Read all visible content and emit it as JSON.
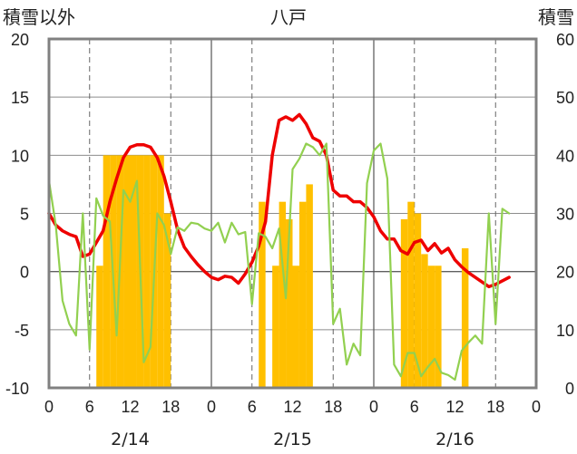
{
  "chart_data": {
    "type": "bar",
    "title": "八戸",
    "left_axis_label": "積雪以外",
    "right_axis_label": "積雪",
    "ylim_left": [
      -10,
      20
    ],
    "yticks_left": [
      "20",
      "15",
      "10",
      "5",
      "0",
      "-5",
      "-10"
    ],
    "ylim_right": [
      0,
      60
    ],
    "yticks_right": [
      "60",
      "50",
      "40",
      "30",
      "20",
      "10",
      "0"
    ],
    "xlim_hours": [
      0,
      72
    ],
    "xtick_labels": [
      "0",
      "6",
      "12",
      "18",
      "0",
      "6",
      "12",
      "18",
      "0",
      "6",
      "12",
      "18",
      "0"
    ],
    "date_labels": [
      "2/14",
      "2/15",
      "2/16"
    ],
    "grid": "dashed vertical lines at 6 and 18 h; solid vertical lines at day boundaries; horizontal lines every 5 units",
    "colors": {
      "snow_depth": "#ffc000",
      "temperature": "#ee0000",
      "green_series": "#92d050",
      "purple_series": "#7030a0",
      "frame": "#808080"
    },
    "series": [
      {
        "kind": "bar",
        "axis": "right",
        "color": "#ffc000",
        "points": [
          [
            7,
            21
          ],
          [
            8,
            40
          ],
          [
            9,
            40
          ],
          [
            10,
            40
          ],
          [
            11,
            40
          ],
          [
            12,
            40
          ],
          [
            13,
            40
          ],
          [
            14,
            40
          ],
          [
            15,
            40
          ],
          [
            16,
            40
          ],
          [
            17,
            30
          ],
          [
            31,
            32
          ],
          [
            33,
            21
          ],
          [
            34,
            32
          ],
          [
            35,
            29
          ],
          [
            36,
            21
          ],
          [
            37,
            32
          ],
          [
            38,
            35
          ],
          [
            52,
            29
          ],
          [
            53,
            32
          ],
          [
            54,
            30
          ],
          [
            55,
            23
          ],
          [
            56,
            21
          ],
          [
            57,
            21
          ],
          [
            61,
            24
          ]
        ]
      },
      {
        "kind": "line",
        "axis": "left",
        "color": "#ee0000",
        "points": [
          [
            0,
            5
          ],
          [
            1,
            4
          ],
          [
            2,
            3.5
          ],
          [
            3,
            3.2
          ],
          [
            4,
            3
          ],
          [
            5,
            1.3
          ],
          [
            6,
            1.5
          ],
          [
            7,
            2.5
          ],
          [
            8,
            3.5
          ],
          [
            9,
            6
          ],
          [
            10,
            8
          ],
          [
            11,
            9.8
          ],
          [
            12,
            10.7
          ],
          [
            13,
            10.9
          ],
          [
            14,
            10.9
          ],
          [
            15,
            10.7
          ],
          [
            16,
            9.8
          ],
          [
            17,
            8.2
          ],
          [
            18,
            6
          ],
          [
            19,
            3.6
          ],
          [
            20,
            2.1
          ],
          [
            21,
            1.3
          ],
          [
            22,
            0.6
          ],
          [
            23,
            0
          ],
          [
            24,
            -0.5
          ],
          [
            25,
            -0.7
          ],
          [
            26,
            -0.4
          ],
          [
            27,
            -0.5
          ],
          [
            28,
            -1
          ],
          [
            29,
            -0.2
          ],
          [
            30,
            0.8
          ],
          [
            31,
            2.2
          ],
          [
            32,
            4.3
          ],
          [
            33,
            10
          ],
          [
            34,
            13
          ],
          [
            35,
            13.3
          ],
          [
            36,
            13
          ],
          [
            37,
            13.5
          ],
          [
            38,
            12.7
          ],
          [
            39,
            11.5
          ],
          [
            40,
            11.2
          ],
          [
            41,
            10
          ],
          [
            42,
            7
          ],
          [
            43,
            6.5
          ],
          [
            44,
            6.5
          ],
          [
            45,
            6
          ],
          [
            46,
            6
          ],
          [
            47,
            5.5
          ],
          [
            48,
            4.7
          ],
          [
            49,
            3.5
          ],
          [
            50,
            2.8
          ],
          [
            51,
            2.8
          ],
          [
            52,
            1.8
          ],
          [
            53,
            1.5
          ],
          [
            54,
            2.5
          ],
          [
            55,
            2.7
          ],
          [
            56,
            1.8
          ],
          [
            57,
            2.4
          ],
          [
            58,
            1.6
          ],
          [
            59,
            2
          ],
          [
            60,
            1
          ],
          [
            61,
            0.4
          ],
          [
            62,
            -0.1
          ],
          [
            63,
            -0.5
          ],
          [
            64,
            -0.9
          ],
          [
            65,
            -1.3
          ],
          [
            66,
            -1.1
          ],
          [
            67,
            -0.8
          ],
          [
            68,
            -0.5
          ]
        ]
      },
      {
        "kind": "line",
        "axis": "left",
        "color": "#92d050",
        "points": [
          [
            0,
            7.8
          ],
          [
            1,
            4
          ],
          [
            2,
            -2.5
          ],
          [
            3,
            -4.5
          ],
          [
            4,
            -5.5
          ],
          [
            5,
            5
          ],
          [
            6,
            -6.7
          ],
          [
            7,
            6.3
          ],
          [
            8,
            4.8
          ],
          [
            9,
            4.3
          ],
          [
            10,
            -5.5
          ],
          [
            11,
            7
          ],
          [
            12,
            6
          ],
          [
            13,
            7.8
          ],
          [
            14,
            -7.8
          ],
          [
            15,
            -6.5
          ],
          [
            16,
            5
          ],
          [
            17,
            4
          ],
          [
            18,
            1.5
          ],
          [
            19,
            3.8
          ],
          [
            20,
            3.5
          ],
          [
            21,
            4.2
          ],
          [
            22,
            4.1
          ],
          [
            23,
            3.7
          ],
          [
            24,
            3.5
          ],
          [
            25,
            4.2
          ],
          [
            26,
            2.5
          ],
          [
            27,
            4.2
          ],
          [
            28,
            3.2
          ],
          [
            29,
            3.4
          ],
          [
            30,
            -2.8
          ],
          [
            31,
            3.3
          ],
          [
            32,
            3
          ],
          [
            33,
            2
          ],
          [
            34,
            3.7
          ],
          [
            35,
            -2.3
          ],
          [
            36,
            8.8
          ],
          [
            37,
            9.7
          ],
          [
            38,
            11
          ],
          [
            39,
            10.7
          ],
          [
            40,
            10
          ],
          [
            41,
            11
          ],
          [
            42,
            -4.5
          ],
          [
            43,
            -3.2
          ],
          [
            44,
            -8
          ],
          [
            45,
            -6.2
          ],
          [
            46,
            -7.2
          ],
          [
            47,
            7.6
          ],
          [
            48,
            10.4
          ],
          [
            49,
            11
          ],
          [
            50,
            8
          ],
          [
            51,
            -8
          ],
          [
            52,
            -9
          ],
          [
            53,
            -7
          ],
          [
            54,
            -7
          ],
          [
            55,
            -9
          ],
          [
            56,
            -8.2
          ],
          [
            57,
            -7.5
          ],
          [
            58,
            -8.7
          ],
          [
            59,
            -8.9
          ],
          [
            60,
            -9.3
          ],
          [
            61,
            -6.8
          ],
          [
            62,
            -6.1
          ],
          [
            63,
            -5.5
          ],
          [
            64,
            -6.2
          ],
          [
            65,
            5
          ],
          [
            66,
            -4.5
          ],
          [
            67,
            5.4
          ],
          [
            68,
            5
          ]
        ]
      },
      {
        "kind": "line",
        "axis": "left",
        "color": "#7030a0",
        "points": [
          [
            0,
            -10
          ],
          [
            72,
            -10
          ]
        ]
      }
    ]
  }
}
